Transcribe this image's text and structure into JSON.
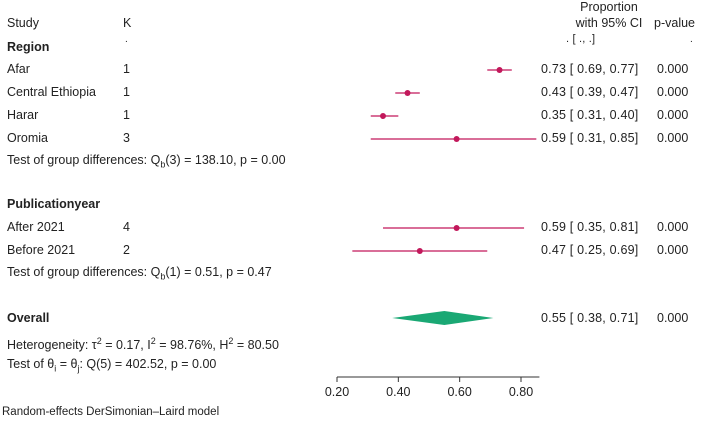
{
  "header": {
    "study": "Study",
    "k": "K",
    "prop_line1": "Proportion",
    "prop_line2": "with 95% CI",
    "pvalue": "p-value",
    "k_dot": ".",
    "ci_placeholder": ". [    .,    .]",
    "p_dot": "."
  },
  "groups": [
    {
      "label": "Region",
      "rows": [
        {
          "study": "Afar",
          "k": "1",
          "ci_text": "0.73 [ 0.69, 0.77]",
          "p": "0.000"
        },
        {
          "study": "Central Ethiopia",
          "k": "1",
          "ci_text": "0.43 [ 0.39, 0.47]",
          "p": "0.000"
        },
        {
          "study": "Harar",
          "k": "1",
          "ci_text": "0.35 [ 0.31, 0.40]",
          "p": "0.000"
        },
        {
          "study": "Oromia",
          "k": "3",
          "ci_text": "0.59 [ 0.31, 0.85]",
          "p": "0.000"
        }
      ],
      "test_prefix": "Test of group differences: Q",
      "test_sub": "b",
      "test_suffix": "(3) = 138.10, p = 0.00"
    },
    {
      "label": "Publicationyear",
      "rows": [
        {
          "study": "After 2021",
          "k": "4",
          "ci_text": "0.59 [ 0.35, 0.81]",
          "p": "0.000"
        },
        {
          "study": "Before 2021",
          "k": "2",
          "ci_text": "0.47 [ 0.25, 0.69]",
          "p": "0.000"
        }
      ],
      "test_prefix": "Test of group differences: Q",
      "test_sub": "b",
      "test_suffix": "(1) = 0.51, p = 0.47"
    }
  ],
  "overall": {
    "label": "Overall",
    "ci_text": "0.55 [ 0.38, 0.71]",
    "p": "0.000",
    "heterogeneity_prefix": "Heterogeneity: τ",
    "tau_sup": "2",
    "het_mid1": " = 0.17, I",
    "i_sup": "2",
    "het_mid2": " = 98.76%, H",
    "h_sup": "2",
    "het_end": " = 80.50",
    "theta_prefix": "Test of θ",
    "theta_sub_i": "i",
    "theta_mid": " = θ",
    "theta_sub_j": "j",
    "theta_end": ": Q(5) = 402.52, p = 0.00"
  },
  "footer": {
    "model": "Random-effects DerSimonian–Laird model"
  },
  "colors": {
    "marker": "#c2185b",
    "diamond": "#1aa874",
    "axis": "#333333",
    "text": "#222222"
  },
  "chart_data": {
    "type": "forest",
    "xlim": [
      0.2,
      0.86
    ],
    "xticks": [
      0.2,
      0.4,
      0.6,
      0.8
    ],
    "xtick_labels": [
      "0.20",
      "0.40",
      "0.60",
      "0.80"
    ],
    "series": [
      {
        "name": "Afar",
        "estimate": 0.73,
        "lower": 0.69,
        "upper": 0.77
      },
      {
        "name": "Central Ethiopia",
        "estimate": 0.43,
        "lower": 0.39,
        "upper": 0.47
      },
      {
        "name": "Harar",
        "estimate": 0.35,
        "lower": 0.31,
        "upper": 0.4
      },
      {
        "name": "Oromia",
        "estimate": 0.59,
        "lower": 0.31,
        "upper": 0.85
      },
      {
        "name": "After 2021",
        "estimate": 0.59,
        "lower": 0.35,
        "upper": 0.81
      },
      {
        "name": "Before 2021",
        "estimate": 0.47,
        "lower": 0.25,
        "upper": 0.69
      }
    ],
    "overall": {
      "name": "Overall",
      "estimate": 0.55,
      "lower": 0.38,
      "upper": 0.71
    }
  }
}
